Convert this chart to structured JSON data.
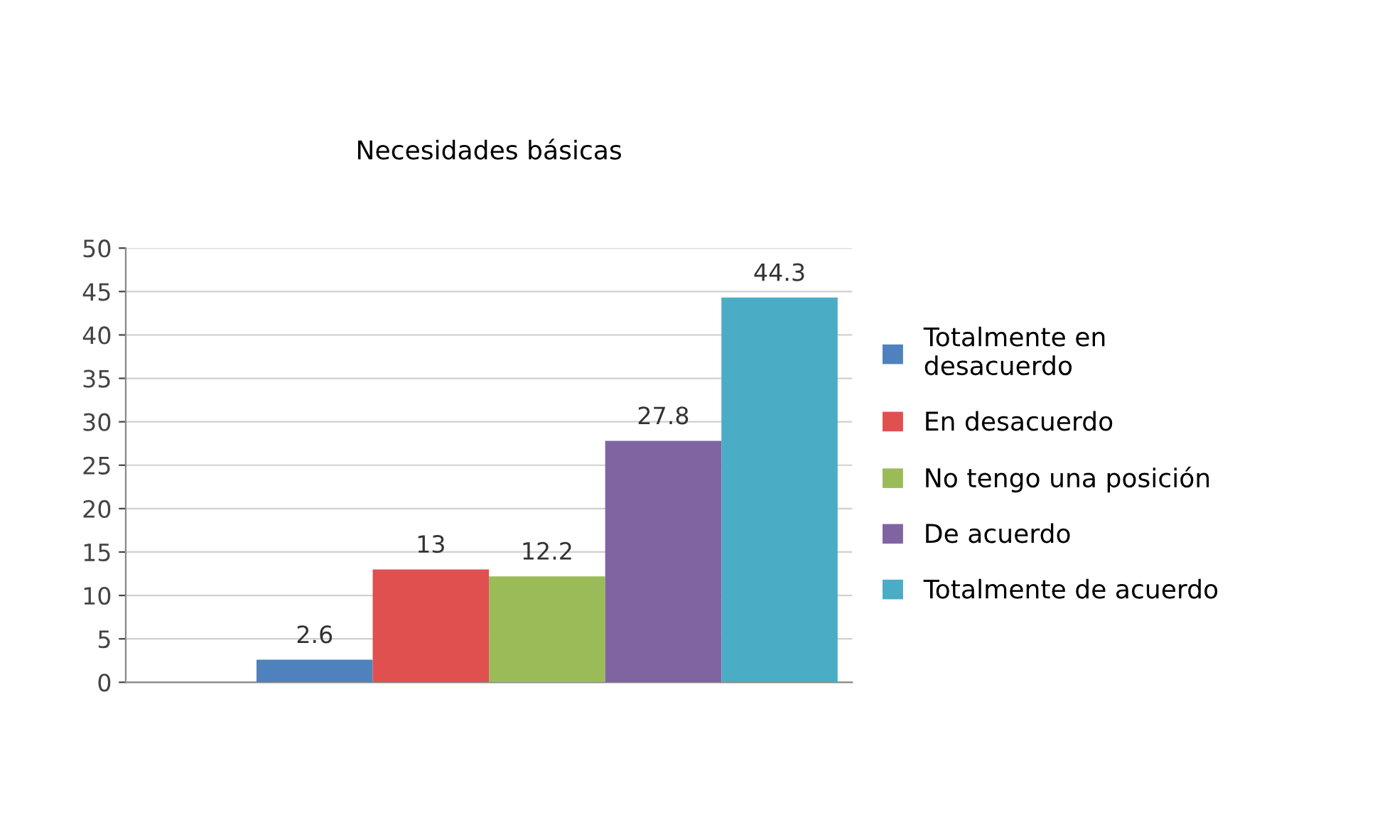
{
  "chart_data": {
    "type": "bar",
    "title": "Necesidades básicas",
    "categories": [
      null
    ],
    "series": [
      {
        "name": "Totalmente en desacuerdo",
        "color": "#4f81bd",
        "values": [
          2.6
        ]
      },
      {
        "name": "En desacuerdo",
        "color": "#e0504f",
        "values": [
          13
        ]
      },
      {
        "name": "No tengo una posición",
        "color": "#9bbb59",
        "values": [
          12.2
        ]
      },
      {
        "name": "De acuerdo",
        "color": "#8064a2",
        "values": [
          27.8
        ]
      },
      {
        "name": "Totalmente de acuerdo",
        "color": "#4bacc6",
        "values": [
          44.3
        ]
      }
    ],
    "ylim": [
      0,
      50
    ],
    "yticks": [
      0,
      5,
      10,
      15,
      20,
      25,
      30,
      35,
      40,
      45,
      50
    ],
    "grid": "y",
    "legend": "right",
    "data_labels": true,
    "tick_labels": "y"
  }
}
